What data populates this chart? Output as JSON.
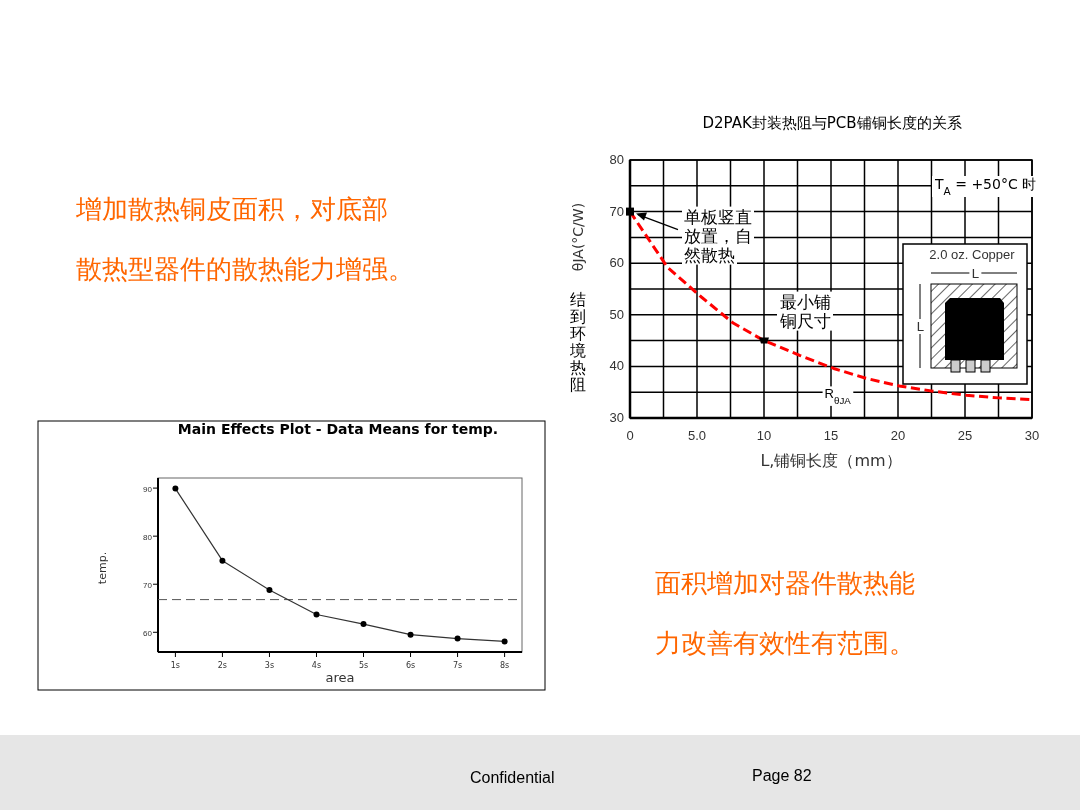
{
  "chart_data": [
    {
      "type": "other",
      "annotations": [
        "增加散热铜皮面积，对底部",
        "散热型器件的散热能力增强。",
        "面积增加对器件散热能",
        "力改善有效性有范围。",
        "Confidential",
        "Page 82"
      ]
    },
    {
      "type": "line",
      "title": "D2PAK封装热阻与PCB铺铜长度的关系",
      "xlabel": "L,铺铜长度（mm）",
      "ylabel": "θJA(°C/W)",
      "x": [
        0,
        2.8,
        5.3,
        7.7,
        10,
        12.7,
        15.2,
        17.6,
        20.1,
        22.6,
        25.1,
        27.5,
        29.8
      ],
      "series": [
        {
          "name": "R$_{θJA}$",
          "color": "#ff0000",
          "values": [
            70,
            59.2,
            53.5,
            48.4,
            45,
            42.1,
            39.6,
            37.7,
            36.2,
            35.2,
            34.4,
            33.9,
            33.6
          ]
        }
      ],
      "line_style": "dashed",
      "grid": true,
      "xlim": [
        0,
        30
      ],
      "xticks": [
        0,
        {
          "value": 2.5,
          "label": null
        },
        {
          "value": 5,
          "label": "5.0"
        },
        {
          "value": 7.5,
          "label": null
        },
        10,
        {
          "value": 12.5,
          "label": null
        },
        15,
        {
          "value": 17.5,
          "label": null
        },
        20,
        {
          "value": 22.5,
          "label": null
        },
        25,
        {
          "value": 27.5,
          "label": null
        },
        30
      ],
      "ylim": [
        30,
        80
      ],
      "yticks": [
        30,
        {
          "value": 35,
          "label": null
        },
        40,
        {
          "value": 45,
          "label": null
        },
        50,
        {
          "value": 55,
          "label": null
        },
        60,
        {
          "value": 65,
          "label": null
        },
        70,
        {
          "value": 75,
          "label": null
        },
        80
      ],
      "annotations": [
        {
          "text": "单板竖直放置，自然散热",
          "x": 0,
          "y": 70
        },
        {
          "text": "最小铺铜尺寸",
          "x": 10,
          "y": 45
        },
        "T$_{A}$ = +50°C 时",
        "结到环境热阻",
        "2.0 oz. Copper",
        "L",
        "L"
      ]
    },
    {
      "type": "line",
      "title": "Main Effects Plot - Data Means for temp.",
      "xlabel": "area",
      "ylabel": "temp.",
      "categories": [
        "1s",
        "2s",
        "3s",
        "4s",
        "5s",
        "6s",
        "7s",
        "8s"
      ],
      "series": [
        {
          "color": "#333333",
          "values": [
            89.9,
            74.9,
            68.8,
            63.7,
            61.7,
            59.5,
            58.7,
            58.1
          ]
        }
      ],
      "marker": "circle",
      "ylim": [
        55.9,
        92.1
      ],
      "yticks": [
        60,
        70,
        80,
        90
      ],
      "ref_lines": [
        {
          "axis": "y",
          "value": 66.8,
          "line_style": "dashed",
          "color": "#555555"
        }
      ]
    }
  ]
}
